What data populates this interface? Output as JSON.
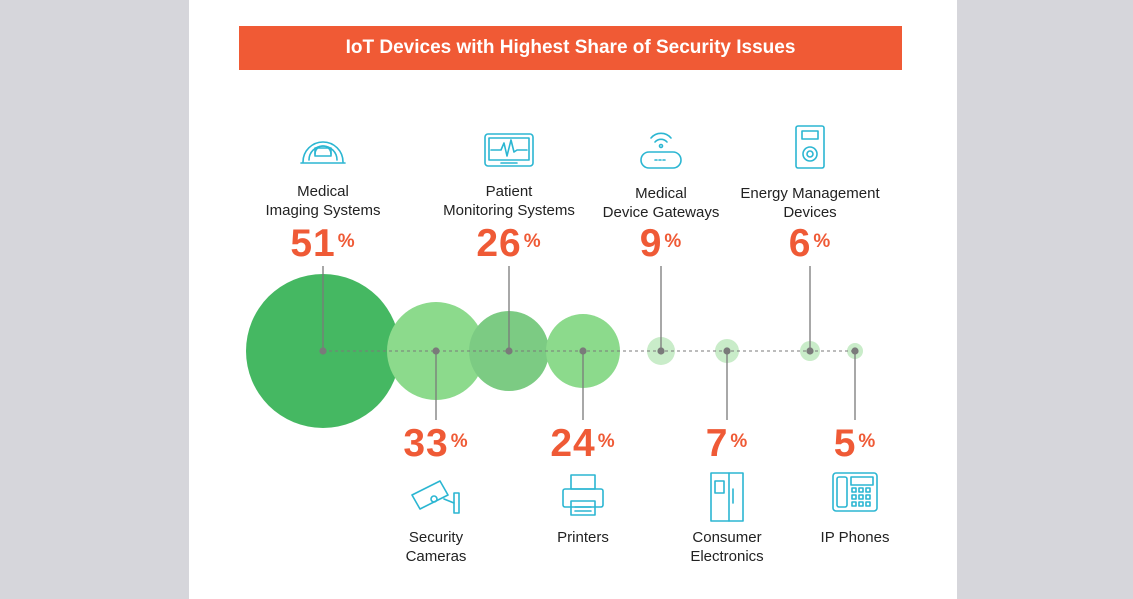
{
  "title": "IoT Devices with Highest Share of Security Issues",
  "colors": {
    "background": "#d6d6db",
    "card": "#ffffff",
    "title_bg": "#f05a35",
    "accent": "#ef5a36",
    "icon": "#2bb6d2",
    "bubble_dark": "#45b862",
    "bubble_mid": "#7ccb83",
    "bubble_light": "#8cda8c",
    "bubble_faint": "#c9ecc9",
    "connector": "#7a7a7a"
  },
  "chart_data": {
    "type": "bubble",
    "title": "IoT Devices with Highest Share of Security Issues",
    "unit": "%",
    "points": [
      {
        "label": "Medical\nImaging Systems",
        "value": 51,
        "icon": "mri-scanner-icon",
        "label_side": "top",
        "color": "bubble_dark"
      },
      {
        "label": "Security\nCameras",
        "value": 33,
        "icon": "security-camera-icon",
        "label_side": "bottom",
        "color": "bubble_light"
      },
      {
        "label": "Patient\nMonitoring Systems",
        "value": 26,
        "icon": "heart-monitor-icon",
        "label_side": "top",
        "color": "bubble_mid"
      },
      {
        "label": "Printers",
        "value": 24,
        "icon": "printer-icon",
        "label_side": "bottom",
        "color": "bubble_light"
      },
      {
        "label": "Medical\nDevice Gateways",
        "value": 9,
        "icon": "wifi-gateway-icon",
        "label_side": "top",
        "color": "bubble_faint"
      },
      {
        "label": "Consumer\nElectronics",
        "value": 7,
        "icon": "refrigerator-icon",
        "label_side": "bottom",
        "color": "bubble_faint"
      },
      {
        "label": "Energy Management\nDevices",
        "value": 6,
        "icon": "thermostat-icon",
        "label_side": "top",
        "color": "bubble_faint"
      },
      {
        "label": "IP Phones",
        "value": 5,
        "icon": "ip-phone-icon",
        "label_side": "bottom",
        "color": "bubble_faint"
      }
    ]
  }
}
